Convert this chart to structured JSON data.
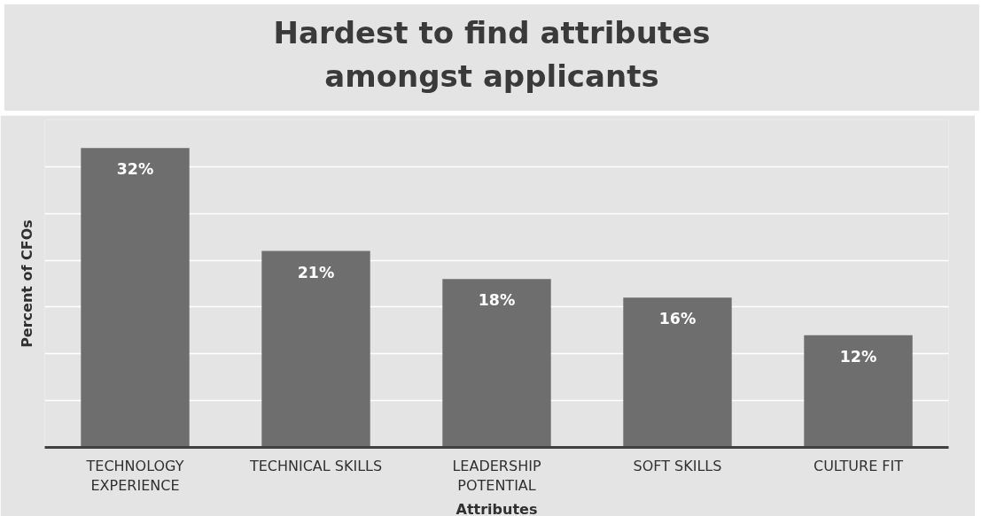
{
  "chart_data": {
    "type": "bar",
    "title": "Hardest to find attributes amongst applicants",
    "xlabel": "Attributes",
    "ylabel": "Percent of CFOs",
    "categories": [
      "TECHNOLOGY EXPERIENCE",
      "TECHNICAL SKILLS",
      "LEADERSHIP POTENTIAL",
      "SOFT SKILLS",
      "CULTURE FIT"
    ],
    "values": [
      32,
      21,
      18,
      16,
      12
    ],
    "value_labels": [
      "32%",
      "21%",
      "18%",
      "16%",
      "12%"
    ],
    "color": "#6e6e6e",
    "ylim": [
      0,
      35
    ],
    "yticks": [
      {
        "value": 0,
        "label": null
      },
      {
        "value": 5,
        "label": null
      },
      {
        "value": 10,
        "label": null
      },
      {
        "value": 15,
        "label": null
      },
      {
        "value": 20,
        "label": null
      },
      {
        "value": 25,
        "label": null
      },
      {
        "value": 30,
        "label": null
      },
      {
        "value": 35,
        "label": null
      }
    ],
    "tick_labels": "x",
    "grid": "y"
  }
}
